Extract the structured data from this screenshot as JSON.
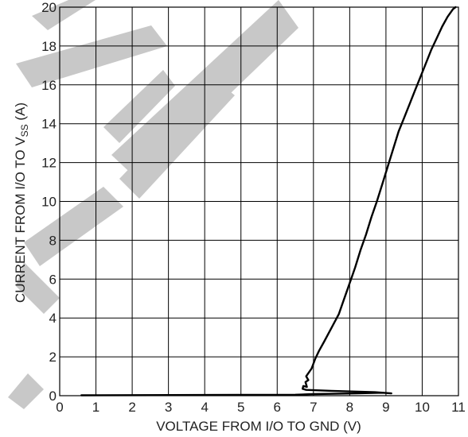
{
  "chart_data": {
    "type": "line",
    "title": "",
    "xlabel": "VOLTAGE FROM I/O TO GND (V)",
    "ylabel": {
      "prefix": "CURRENT FROM I/O TO V",
      "subscript": "SS",
      "suffix": " (A)"
    },
    "xlim": [
      0,
      11
    ],
    "ylim": [
      0,
      20
    ],
    "xticks": [
      "0",
      "1",
      "2",
      "3",
      "4",
      "5",
      "6",
      "7",
      "8",
      "9",
      "10",
      "11"
    ],
    "yticks": [
      "0",
      "2",
      "4",
      "6",
      "8",
      "10",
      "12",
      "14",
      "16",
      "18",
      "20"
    ],
    "grid": true,
    "watermark_color": "#c8c8c8",
    "line_color": "#000000",
    "series": [
      {
        "name": "",
        "x": [
          0.6,
          5.0,
          6.5,
          7.0,
          8.2,
          8.9,
          9.15,
          8.7,
          7.5,
          6.8,
          6.7,
          6.72,
          6.82,
          6.78,
          6.86,
          6.8,
          6.95,
          7.05,
          7.15,
          7.3,
          7.5,
          7.7,
          7.85,
          8.0,
          8.15,
          8.3,
          8.45,
          8.6,
          8.75,
          8.9,
          9.05,
          9.2,
          9.35,
          9.5,
          9.65,
          9.8,
          9.95,
          10.1,
          10.25,
          10.4,
          10.55,
          10.7,
          10.85,
          10.92
        ],
        "y": [
          0.02,
          0.04,
          0.05,
          0.08,
          0.12,
          0.15,
          0.12,
          0.18,
          0.25,
          0.3,
          0.35,
          0.5,
          0.45,
          0.7,
          0.8,
          1.0,
          1.4,
          1.9,
          2.3,
          2.8,
          3.5,
          4.2,
          5.0,
          5.8,
          6.6,
          7.5,
          8.3,
          9.2,
          10.0,
          10.9,
          11.8,
          12.7,
          13.6,
          14.3,
          15.0,
          15.7,
          16.4,
          17.1,
          17.8,
          18.4,
          19.0,
          19.5,
          19.9,
          20.0
        ]
      }
    ]
  }
}
